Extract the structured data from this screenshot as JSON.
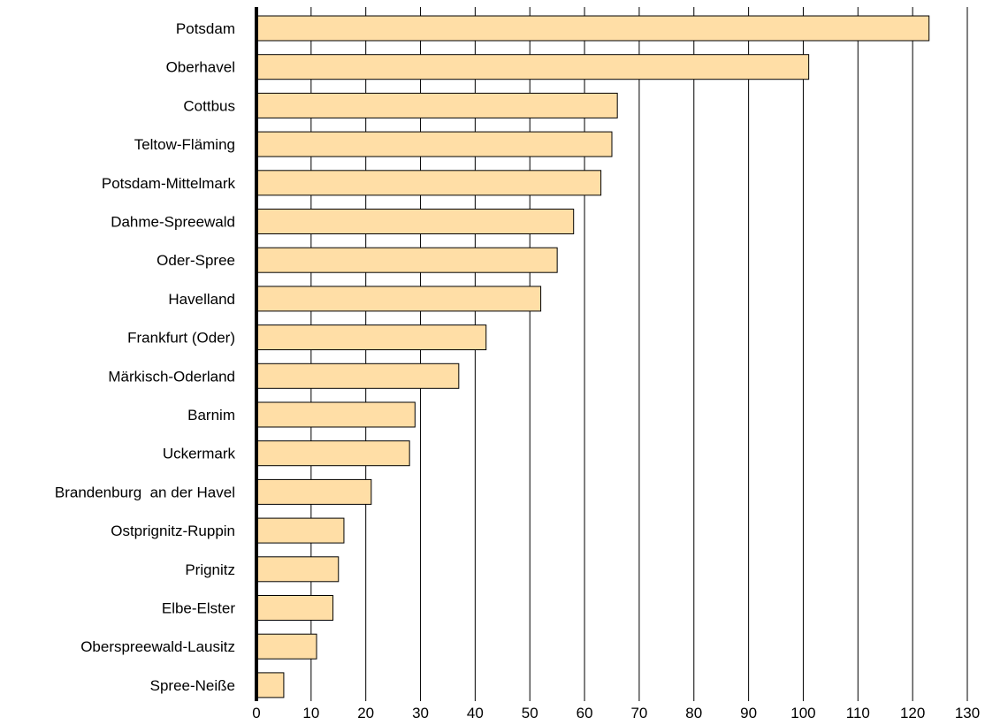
{
  "chart_data": {
    "type": "bar",
    "orientation": "horizontal",
    "categories": [
      "Potsdam",
      "Oberhavel",
      "Cottbus",
      "Teltow-Fläming",
      "Potsdam-Mittelmark",
      "Dahme-Spreewald",
      "Oder-Spree",
      "Havelland",
      "Frankfurt (Oder)",
      "Märkisch-Oderland",
      "Barnim",
      "Uckermark",
      "Brandenburg  an der Havel",
      "Ostprignitz-Ruppin",
      "Prignitz",
      "Elbe-Elster",
      "Oberspreewald-Lausitz",
      "Spree-Neiße"
    ],
    "values": [
      123,
      101,
      66,
      65,
      63,
      58,
      55,
      52,
      42,
      37,
      29,
      28,
      21,
      16,
      15,
      14,
      11,
      5
    ],
    "xlim": [
      0,
      130
    ],
    "xticks": [
      0,
      10,
      20,
      30,
      40,
      50,
      60,
      70,
      80,
      90,
      100,
      110,
      120,
      130
    ],
    "grid": "vertical",
    "bar_color": "#FFDEA6",
    "title": "",
    "xlabel": "",
    "ylabel": ""
  }
}
